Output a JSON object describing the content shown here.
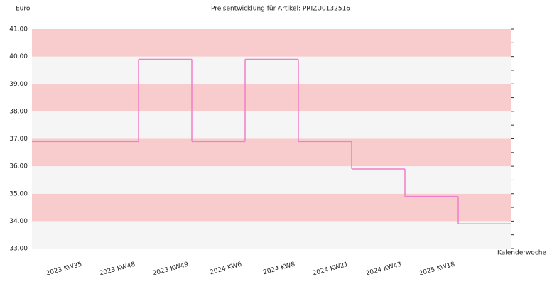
{
  "chart_data": {
    "type": "step",
    "title": "Preisentwicklung für Artikel: PRIZU0132516",
    "y_label": "Euro",
    "x_label": "Kalenderwoche",
    "categories": [
      "2023 KW35",
      "2023 KW48",
      "2023 KW49",
      "2024 KW6",
      "2024 KW8",
      "2024 KW21",
      "2024 KW43",
      "2025 KW18"
    ],
    "values": [
      36.9,
      39.9,
      36.9,
      39.9,
      36.9,
      35.9,
      34.9,
      33.9
    ],
    "color": "#f07ec8",
    "band_colors": [
      "#f5f5f5",
      "#f8cccc"
    ],
    "ylim": [
      33,
      41
    ],
    "yticks": [
      {
        "value": 33,
        "label": "33.00"
      },
      {
        "value": 34,
        "label": "34.00"
      },
      {
        "value": 35,
        "label": "35.00"
      },
      {
        "value": 36,
        "label": "36.00"
      },
      {
        "value": 37,
        "label": "37.00"
      },
      {
        "value": 38,
        "label": "38.00"
      },
      {
        "value": 39,
        "label": "39.00"
      },
      {
        "value": 40,
        "label": "40.00"
      },
      {
        "value": 41,
        "label": "41.00"
      }
    ]
  }
}
